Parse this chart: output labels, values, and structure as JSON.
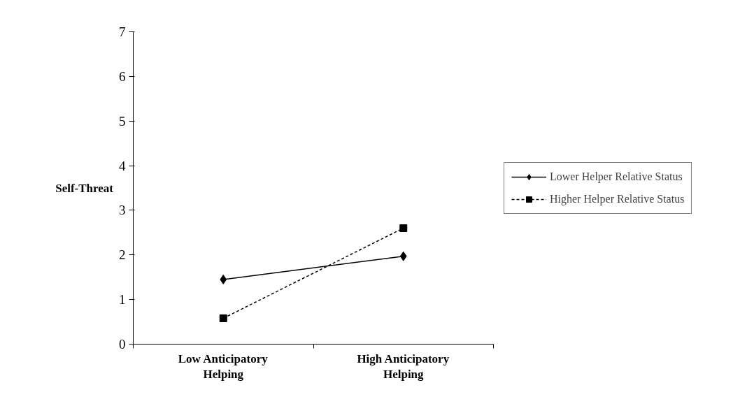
{
  "chart_data": {
    "type": "line",
    "ylabel": "Self-Threat",
    "categories": [
      "Low Anticipatory Helping",
      "High Anticipatory Helping"
    ],
    "series": [
      {
        "name": "Lower Helper Relative Status",
        "color": "#000000",
        "values": [
          1.45,
          1.97
        ],
        "marker": "diamond",
        "line_style": "solid"
      },
      {
        "name": "Higher Helper Relative Status",
        "color": "#000000",
        "values": [
          0.58,
          2.6
        ],
        "marker": "square",
        "line_style": "dashed"
      }
    ],
    "ylim": [
      0,
      7
    ],
    "yticks": [
      0,
      1,
      2,
      3,
      4,
      5,
      6,
      7
    ],
    "grid": false,
    "legend": "right"
  }
}
